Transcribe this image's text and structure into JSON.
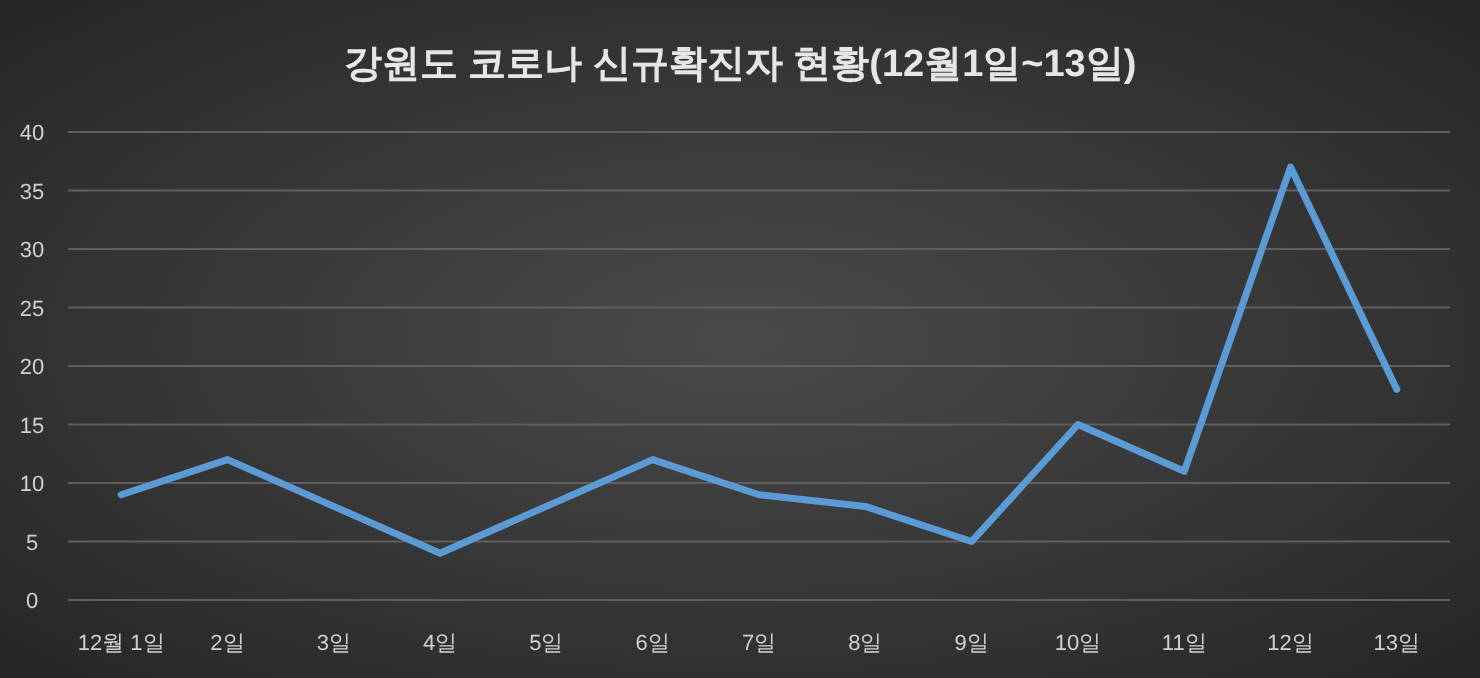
{
  "chart_data": {
    "type": "line",
    "title": "강원도 코로나 신규확진자 현황(12월1일~13일)",
    "categories": [
      "12월 1일",
      "2일",
      "3일",
      "4일",
      "5일",
      "6일",
      "7일",
      "8일",
      "9일",
      "10일",
      "11일",
      "12일",
      "13일"
    ],
    "series": [
      {
        "color": "#5b9bd5",
        "values": [
          9,
          12,
          8,
          4,
          8,
          12,
          9,
          8,
          5,
          15,
          11,
          37,
          18
        ]
      }
    ],
    "ylim": [
      0,
      40
    ],
    "yticks": [
      0,
      5,
      10,
      15,
      20,
      25,
      30,
      35,
      40
    ],
    "grid": "y",
    "marker": "none",
    "line_style": "solid"
  }
}
